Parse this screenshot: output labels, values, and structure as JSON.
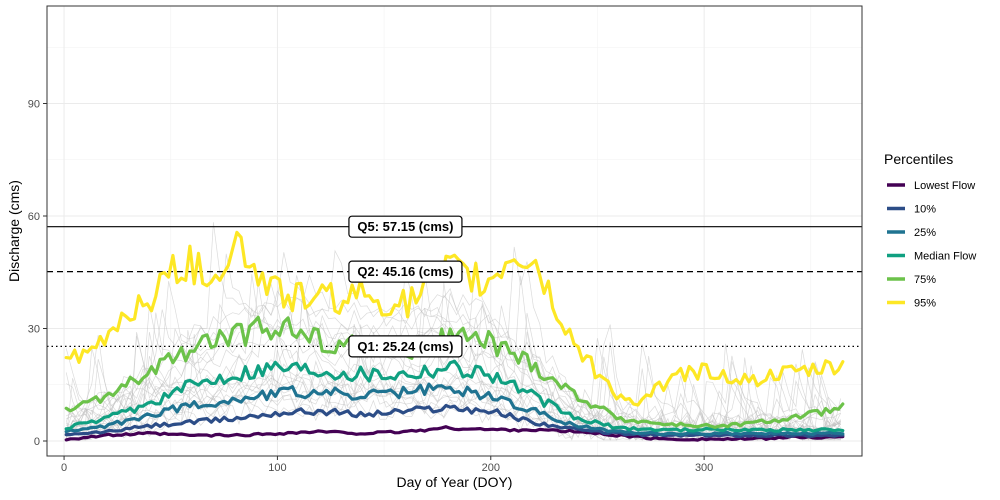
{
  "chart_data": {
    "type": "line",
    "xlabel": "Day of Year (DOY)",
    "ylabel": "Discharge (cms)",
    "xlim": [
      -8,
      374
    ],
    "ylim": [
      -4,
      116
    ],
    "x_ticks": [
      0,
      100,
      200,
      300
    ],
    "y_ticks": [
      0,
      30,
      60,
      90
    ],
    "grid": true,
    "legend": {
      "title": "Percentiles",
      "placement": "right",
      "items": [
        {
          "label": "Lowest Flow",
          "color": "#440154"
        },
        {
          "label": "10%",
          "color": "#2c4d87"
        },
        {
          "label": "25%",
          "color": "#1f7391"
        },
        {
          "label": "Median Flow",
          "color": "#10a081"
        },
        {
          "label": "75%",
          "color": "#6cc24a"
        },
        {
          "label": "95%",
          "color": "#fde725"
        }
      ]
    },
    "hlines": [
      {
        "y": 57.15,
        "style": "solid",
        "label": "Q5: 57.15 (cms)",
        "label_x": 160
      },
      {
        "y": 45.16,
        "style": "dashed",
        "label": "Q2: 45.16 (cms)",
        "label_x": 160
      },
      {
        "y": 25.24,
        "style": "dotted",
        "label": "Q1: 25.24 (cms)",
        "label_x": 160
      }
    ],
    "series": [
      {
        "name": "Lowest Flow",
        "color": "#440154",
        "x": [
          1,
          20,
          40,
          60,
          80,
          100,
          120,
          140,
          160,
          180,
          200,
          220,
          240,
          260,
          280,
          300,
          320,
          340,
          366
        ],
        "y": [
          0.5,
          1.5,
          2,
          1.5,
          1.5,
          2,
          2.5,
          2,
          2.5,
          3.5,
          3,
          3,
          2.5,
          1.5,
          0.5,
          0.5,
          0.5,
          1,
          1
        ]
      },
      {
        "name": "10%",
        "color": "#2c4d87",
        "x": [
          1,
          20,
          40,
          60,
          80,
          100,
          120,
          140,
          160,
          180,
          200,
          220,
          240,
          260,
          280,
          300,
          320,
          340,
          366
        ],
        "y": [
          1.5,
          2.5,
          4,
          5,
          6,
          7.5,
          8,
          7,
          8,
          9,
          8,
          5,
          3,
          2,
          1.5,
          1.5,
          1.5,
          1.5,
          1.5
        ]
      },
      {
        "name": "25%",
        "color": "#1f7391",
        "x": [
          1,
          20,
          40,
          60,
          80,
          100,
          120,
          140,
          160,
          180,
          200,
          220,
          240,
          260,
          280,
          300,
          320,
          340,
          366
        ],
        "y": [
          2.5,
          4,
          7,
          9.5,
          11,
          13,
          13,
          12,
          13,
          14,
          12,
          8,
          4,
          2.5,
          2,
          2,
          2,
          2,
          2
        ]
      },
      {
        "name": "Median Flow",
        "color": "#10a081",
        "x": [
          1,
          20,
          40,
          60,
          80,
          100,
          120,
          140,
          160,
          180,
          200,
          220,
          240,
          260,
          280,
          300,
          320,
          340,
          366
        ],
        "y": [
          3.5,
          6,
          10,
          15,
          18,
          20,
          19,
          18,
          18,
          20,
          18,
          12,
          6,
          3.5,
          3,
          3,
          3,
          3,
          3
        ]
      },
      {
        "name": "75%",
        "color": "#6cc24a",
        "x": [
          1,
          20,
          40,
          60,
          80,
          100,
          120,
          140,
          160,
          180,
          200,
          220,
          240,
          260,
          280,
          300,
          320,
          340,
          366
        ],
        "y": [
          8,
          12,
          18,
          25,
          28,
          31,
          27,
          25,
          24,
          28,
          26,
          20,
          12,
          6,
          4.5,
          4,
          4.5,
          6,
          9
        ]
      },
      {
        "name": "95%",
        "color": "#fde725",
        "x": [
          1,
          10,
          20,
          30,
          40,
          50,
          60,
          70,
          80,
          90,
          100,
          120,
          140,
          160,
          180,
          200,
          210,
          220,
          230,
          240,
          250,
          260,
          270,
          280,
          290,
          300,
          320,
          340,
          366
        ],
        "y": [
          22,
          22,
          28,
          35,
          38,
          44,
          48,
          44,
          54,
          45,
          40,
          38,
          39,
          36,
          45,
          42,
          50,
          48,
          36,
          25,
          18,
          12,
          10,
          15,
          18,
          19,
          16,
          18,
          20
        ]
      }
    ]
  }
}
